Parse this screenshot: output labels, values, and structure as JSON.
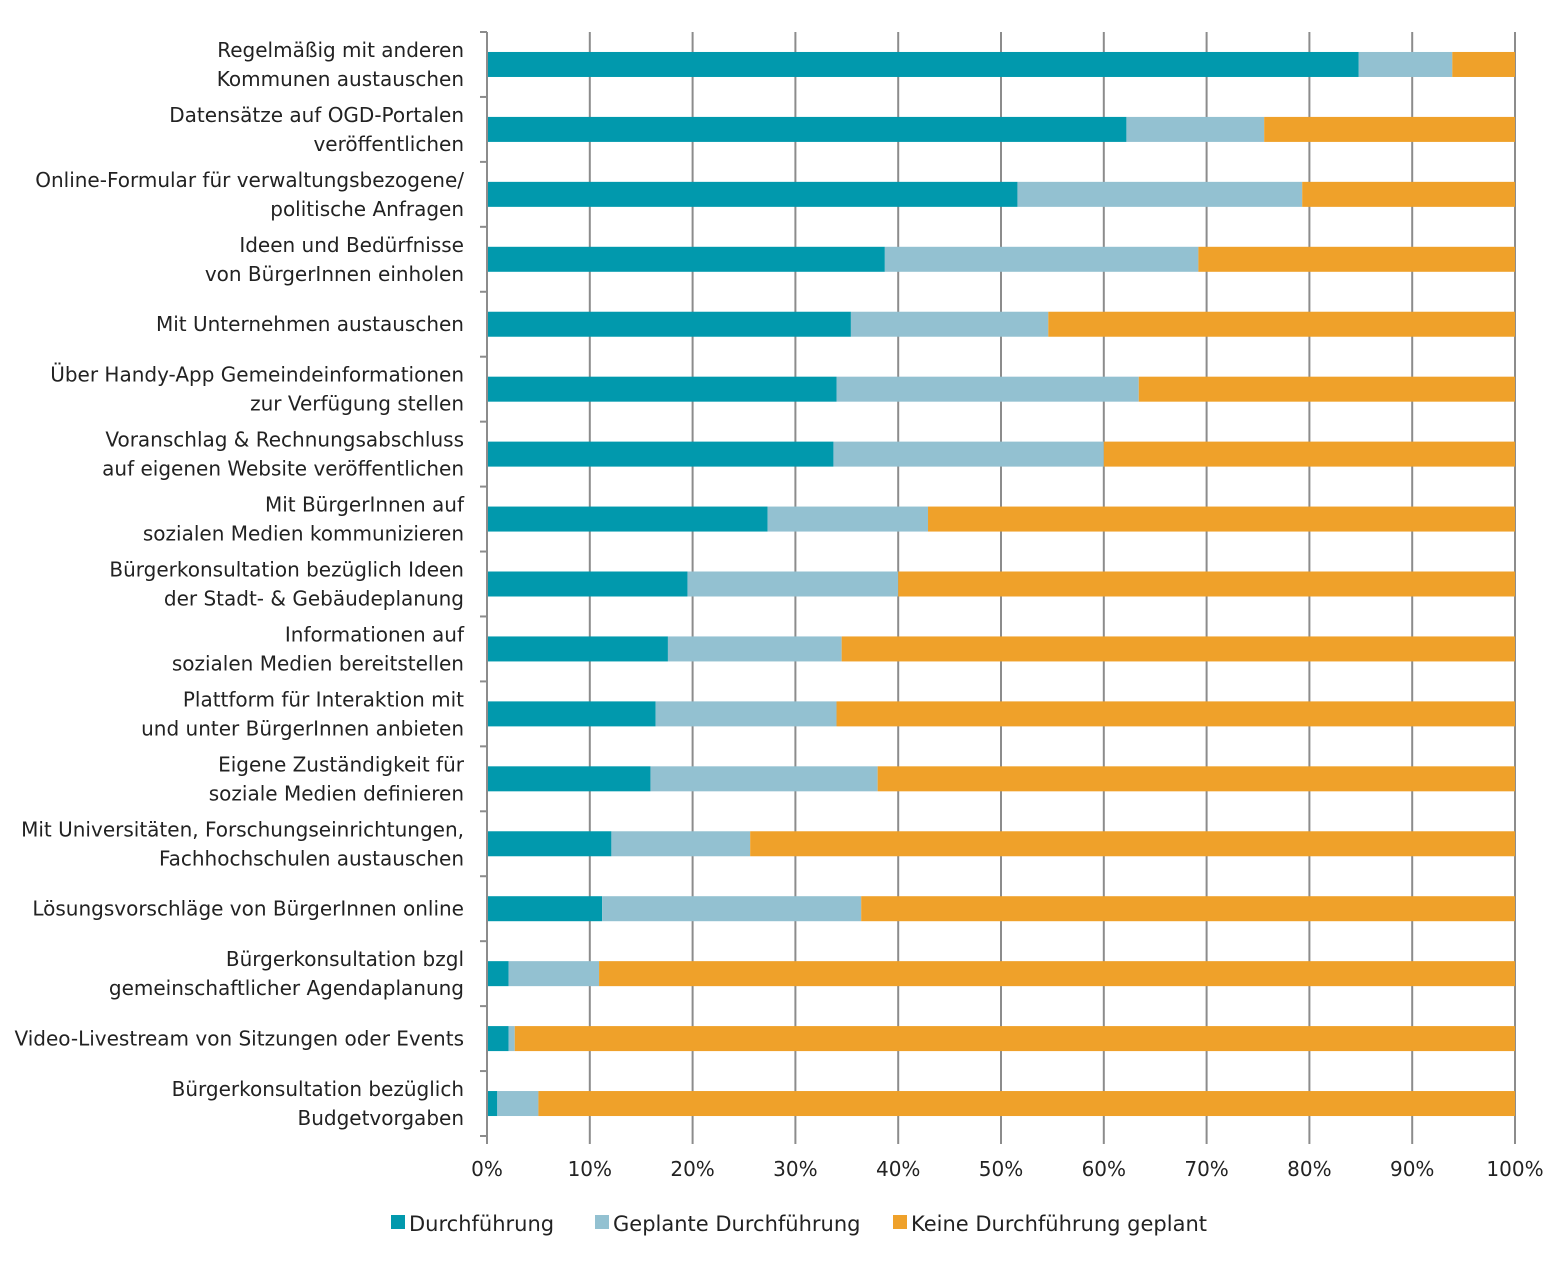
{
  "chart_data": {
    "type": "bar",
    "orientation": "horizontal",
    "stacked": true,
    "percent_stacked": true,
    "title": "",
    "xlabel": "",
    "ylabel": "",
    "xlim": [
      0,
      100
    ],
    "x_ticks": [
      "0%",
      "10%",
      "20%",
      "30%",
      "40%",
      "50%",
      "60%",
      "70%",
      "80%",
      "90%",
      "100%"
    ],
    "grid": "vertical",
    "legend_position": "bottom",
    "categories": [
      [
        "Regelmäßig mit anderen",
        "Kommunen austauschen"
      ],
      [
        "Datensätze auf OGD-Portalen",
        "veröffentlichen"
      ],
      [
        "Online-Formular für verwaltungsbezogene/",
        "politische Anfragen"
      ],
      [
        "Ideen und Bedürfnisse",
        "von BürgerInnen einholen"
      ],
      [
        "Mit Unternehmen austauschen"
      ],
      [
        "Über Handy-App Gemeindeinformationen",
        "zur Verfügung stellen"
      ],
      [
        "Voranschlag & Rechnungsabschluss",
        "auf eigenen Website veröffentlichen"
      ],
      [
        "Mit BürgerInnen auf",
        "sozialen Medien kommunizieren"
      ],
      [
        "Bürgerkonsultation bezüglich Ideen",
        "der Stadt- & Gebäudeplanung"
      ],
      [
        "Informationen auf",
        "sozialen Medien bereitstellen"
      ],
      [
        "Plattform für Interaktion mit",
        "und unter BürgerInnen anbieten"
      ],
      [
        "Eigene Zuständigkeit für",
        "soziale Medien definieren"
      ],
      [
        "Mit Universitäten, Forschungseinrichtungen,",
        "Fachhochschulen austauschen"
      ],
      [
        "Lösungsvorschläge von BürgerInnen online"
      ],
      [
        "Bürgerkonsultation bzgl",
        "gemeinschaftlicher Agendaplanung"
      ],
      [
        "Video-Livestream von Sitzungen oder Events"
      ],
      [
        "Bürgerkonsultation bezüglich",
        "Budgetvorgaben"
      ]
    ],
    "series": [
      {
        "name": "Durchführung",
        "color": "#0199ad",
        "values": [
          84.8,
          62.2,
          51.6,
          38.7,
          35.4,
          34.0,
          33.7,
          27.3,
          19.5,
          17.6,
          16.4,
          15.9,
          12.1,
          11.2,
          2.1,
          2.1,
          1.0
        ]
      },
      {
        "name": "Geplante Durchführung",
        "color": "#93c1d1",
        "values": [
          9.1,
          13.4,
          27.7,
          30.5,
          19.2,
          29.4,
          26.3,
          15.6,
          20.5,
          16.9,
          17.6,
          22.1,
          13.5,
          25.2,
          8.8,
          0.6,
          4.0
        ]
      },
      {
        "name": "Keine Durchführung geplant",
        "color": "#efa12a",
        "values": [
          6.1,
          24.4,
          20.7,
          30.8,
          45.4,
          36.6,
          40.0,
          57.1,
          60.0,
          65.5,
          66.0,
          62.0,
          74.4,
          63.6,
          89.1,
          97.3,
          95.0
        ]
      }
    ]
  }
}
